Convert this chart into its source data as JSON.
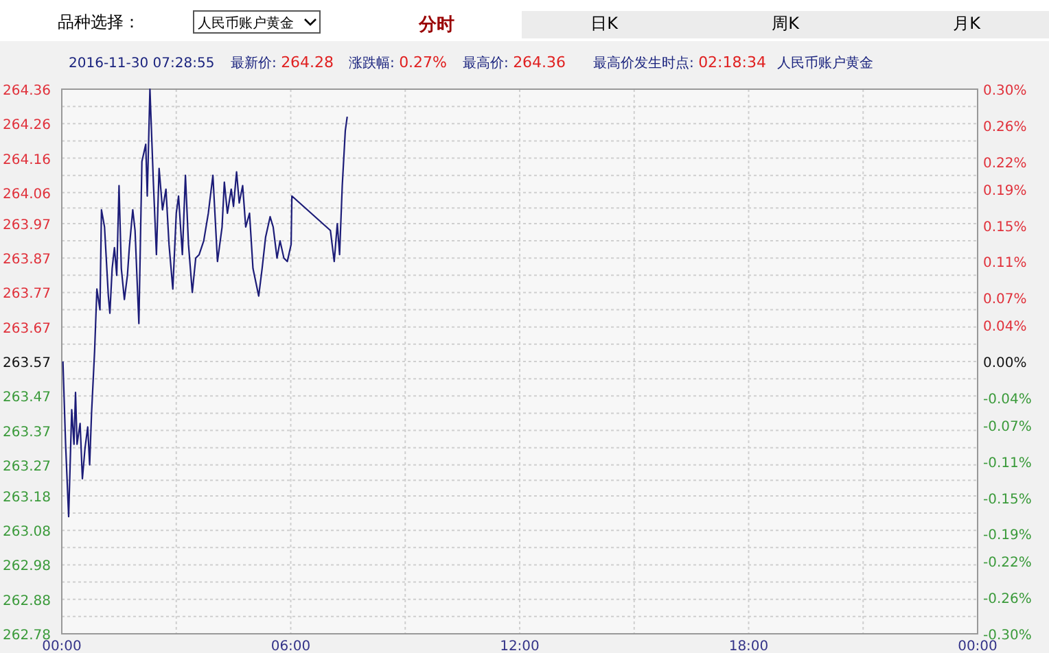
{
  "chart_data": {
    "type": "line",
    "annotations": [
      "品种选择：",
      "人民币账户黄金",
      "分时",
      "日K",
      "周K",
      "月K",
      "2016-11-30 07:28:55",
      "最新价: 264.28",
      "涨跌幅: 0.27%",
      "最高价: 264.36",
      "最高价发生时点: 02:18:34",
      "人民币账户黄金"
    ],
    "series": [
      {
        "color": "#1c1c78",
        "x": [
          0.03,
          0.1,
          0.18,
          0.26,
          0.32,
          0.36,
          0.4,
          0.48,
          0.54,
          0.61,
          0.68,
          0.73,
          0.78,
          0.86,
          0.92,
          1.0,
          1.04,
          1.12,
          1.22,
          1.26,
          1.32,
          1.38,
          1.44,
          1.5,
          1.56,
          1.64,
          1.72,
          1.77,
          1.86,
          1.92,
          2.02,
          2.1,
          2.2,
          2.24,
          2.31,
          2.4,
          2.48,
          2.55,
          2.64,
          2.73,
          2.81,
          2.91,
          3.0,
          3.06,
          3.16,
          3.24,
          3.32,
          3.42,
          3.51,
          3.6,
          3.72,
          3.84,
          3.96,
          4.08,
          4.2,
          4.26,
          4.34,
          4.44,
          4.5,
          4.58,
          4.65,
          4.74,
          4.82,
          4.92,
          5.01,
          5.16,
          5.25,
          5.34,
          5.46,
          5.54,
          5.64,
          5.72,
          5.82,
          5.91,
          6.01,
          6.03,
          7.04,
          7.14,
          7.22,
          7.28,
          7.35,
          7.43,
          7.48
        ],
        "values": [
          263.57,
          263.33,
          263.12,
          263.43,
          263.33,
          263.48,
          263.33,
          263.39,
          263.23,
          263.32,
          263.38,
          263.27,
          263.42,
          263.6,
          263.78,
          263.72,
          264.01,
          263.96,
          263.76,
          263.71,
          263.84,
          263.9,
          263.82,
          264.08,
          263.84,
          263.75,
          263.82,
          263.9,
          264.01,
          263.95,
          263.68,
          264.15,
          264.2,
          264.05,
          264.36,
          264.09,
          263.88,
          264.13,
          264.01,
          264.07,
          263.91,
          263.78,
          264.0,
          264.05,
          263.88,
          264.11,
          263.91,
          263.77,
          263.87,
          263.88,
          263.92,
          264.0,
          264.11,
          263.86,
          263.96,
          264.09,
          264.0,
          264.07,
          264.02,
          264.12,
          264.03,
          264.08,
          263.96,
          264.0,
          263.84,
          263.76,
          263.84,
          263.93,
          263.99,
          263.96,
          263.87,
          263.92,
          263.87,
          263.86,
          263.91,
          264.05,
          263.95,
          263.86,
          263.97,
          263.88,
          264.08,
          264.24,
          264.28
        ]
      }
    ],
    "xlim": [
      0,
      24
    ],
    "xticks": [
      {
        "value": 0,
        "label": "00:00"
      },
      {
        "value": 3,
        "label": null
      },
      {
        "value": 6,
        "label": "06:00"
      },
      {
        "value": 9,
        "label": null
      },
      {
        "value": 12,
        "label": "12:00"
      },
      {
        "value": 15,
        "label": null
      },
      {
        "value": 18,
        "label": "18:00"
      },
      {
        "value": 21,
        "label": null
      },
      {
        "value": 24,
        "label": "00:00"
      }
    ],
    "ylim": [
      262.78,
      264.36
    ],
    "yticks": [
      264.36,
      {
        "value": 264.31,
        "label": null
      },
      264.26,
      {
        "value": 264.21,
        "label": null
      },
      264.16,
      {
        "value": 264.11,
        "label": null
      },
      264.06,
      {
        "value": 264.015,
        "label": null
      },
      263.97,
      {
        "value": 263.92,
        "label": null
      },
      263.87,
      {
        "value": 263.82,
        "label": null
      },
      263.77,
      {
        "value": 263.72,
        "label": null
      },
      263.67,
      {
        "value": 263.62,
        "label": null
      },
      263.57,
      {
        "value": 263.52,
        "label": null
      },
      263.47,
      {
        "value": 263.42,
        "label": null
      },
      263.37,
      {
        "value": 263.32,
        "label": null
      },
      263.27,
      {
        "value": 263.225,
        "label": null
      },
      263.18,
      {
        "value": 263.13,
        "label": null
      },
      263.08,
      {
        "value": 263.03,
        "label": null
      },
      262.98,
      {
        "value": 262.93,
        "label": null
      },
      262.88,
      {
        "value": 262.83,
        "label": null
      },
      262.78
    ],
    "y2lim": [
      -0.3,
      0.3
    ],
    "y2ticks": [
      {
        "value": 0.3,
        "label": "0.30%"
      },
      {
        "value": 0.26,
        "label": "0.26%"
      },
      {
        "value": 0.22,
        "label": "0.22%"
      },
      {
        "value": 0.19,
        "label": "0.19%"
      },
      {
        "value": 0.15,
        "label": "0.15%"
      },
      {
        "value": 0.11,
        "label": "0.11%"
      },
      {
        "value": 0.07,
        "label": "0.07%"
      },
      {
        "value": 0.04,
        "label": "0.04%"
      },
      {
        "value": 0.0,
        "label": "0.00%"
      },
      {
        "value": -0.04,
        "label": "-0.04%"
      },
      {
        "value": -0.07,
        "label": "-0.07%"
      },
      {
        "value": -0.11,
        "label": "-0.11%"
      },
      {
        "value": -0.15,
        "label": "-0.15%"
      },
      {
        "value": -0.19,
        "label": "-0.19%"
      },
      {
        "value": -0.22,
        "label": "-0.22%"
      },
      {
        "value": -0.26,
        "label": "-0.26%"
      },
      {
        "value": -0.3,
        "label": "-0.30%"
      }
    ],
    "grid": true
  }
}
